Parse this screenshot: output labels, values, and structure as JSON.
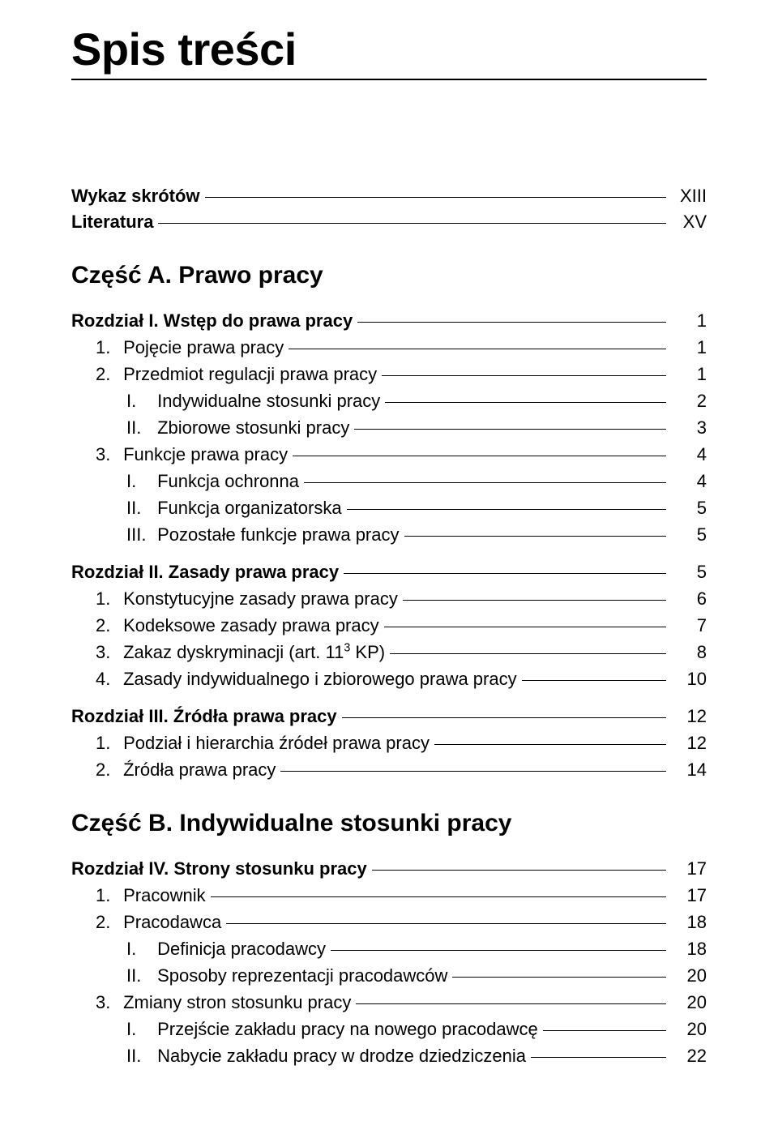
{
  "title": "Spis treści",
  "front_matter": [
    {
      "label": "Wykaz skrótów",
      "page": "XIII"
    },
    {
      "label": "Literatura",
      "page": "XV"
    }
  ],
  "parts": [
    {
      "heading": "Część A. Prawo pracy",
      "chapters": [
        {
          "label": "Rozdział I. Wstęp do prawa pracy",
          "page": "1",
          "items": [
            {
              "lvl": 1,
              "num": "1.",
              "label": "Pojęcie prawa pracy",
              "page": "1"
            },
            {
              "lvl": 1,
              "num": "2.",
              "label": "Przedmiot regulacji prawa pracy",
              "page": "1"
            },
            {
              "lvl": 2,
              "num": "I.",
              "label": "Indywidualne stosunki pracy",
              "page": "2"
            },
            {
              "lvl": 2,
              "num": "II.",
              "label": "Zbiorowe stosunki pracy",
              "page": "3"
            },
            {
              "lvl": 1,
              "num": "3.",
              "label": "Funkcje prawa pracy",
              "page": "4"
            },
            {
              "lvl": 2,
              "num": "I.",
              "label": "Funkcja ochronna",
              "page": "4"
            },
            {
              "lvl": 2,
              "num": "II.",
              "label": "Funkcja organizatorska",
              "page": "5"
            },
            {
              "lvl": 2,
              "num": "III.",
              "label": "Pozostałe funkcje prawa pracy",
              "page": "5"
            }
          ]
        },
        {
          "label": "Rozdział II. Zasady prawa pracy",
          "page": "5",
          "items": [
            {
              "lvl": 1,
              "num": "1.",
              "label": "Konstytucyjne zasady prawa pracy",
              "page": "6"
            },
            {
              "lvl": 1,
              "num": "2.",
              "label": "Kodeksowe zasady prawa pracy",
              "page": "7"
            },
            {
              "lvl": 1,
              "num": "3.",
              "label": "Zakaz dyskryminacji (art. 11",
              "sup": "3",
              "label2": " KP)",
              "page": "8"
            },
            {
              "lvl": 1,
              "num": "4.",
              "label": "Zasady indywidualnego i zbiorowego prawa pracy",
              "page": "10"
            }
          ]
        },
        {
          "label": "Rozdział III. Źródła prawa pracy",
          "page": "12",
          "items": [
            {
              "lvl": 1,
              "num": "1.",
              "label": "Podział i hierarchia źródeł prawa pracy",
              "page": "12"
            },
            {
              "lvl": 1,
              "num": "2.",
              "label": "Źródła prawa pracy",
              "page": "14"
            }
          ]
        }
      ]
    },
    {
      "heading": "Część B. Indywidualne stosunki pracy",
      "chapters": [
        {
          "label": "Rozdział IV. Strony stosunku pracy",
          "page": "17",
          "items": [
            {
              "lvl": 1,
              "num": "1.",
              "label": "Pracownik",
              "page": "17"
            },
            {
              "lvl": 1,
              "num": "2.",
              "label": "Pracodawca",
              "page": "18"
            },
            {
              "lvl": 2,
              "num": "I.",
              "label": "Definicja pracodawcy",
              "page": "18"
            },
            {
              "lvl": 2,
              "num": "II.",
              "label": "Sposoby reprezentacji pracodawców",
              "page": "20"
            },
            {
              "lvl": 1,
              "num": "3.",
              "label": "Zmiany stron stosunku pracy",
              "page": "20"
            },
            {
              "lvl": 2,
              "num": "I.",
              "label": "Przejście zakładu pracy na nowego pracodawcę",
              "page": "20"
            },
            {
              "lvl": 2,
              "num": "II.",
              "label": "Nabycie zakładu pracy w drodze dziedziczenia",
              "page": "22"
            }
          ]
        }
      ]
    }
  ]
}
